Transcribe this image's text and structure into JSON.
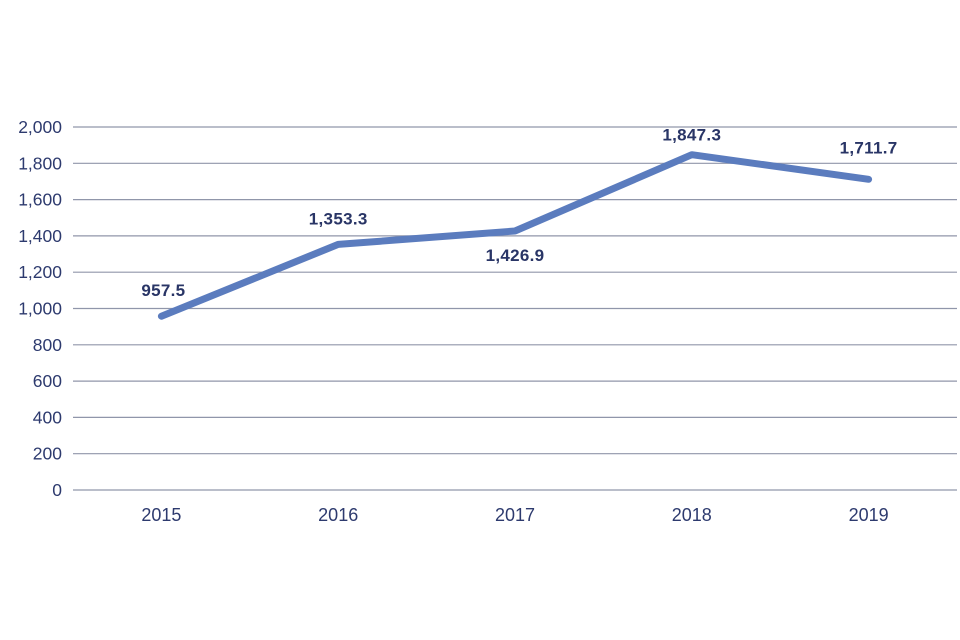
{
  "chart_data": {
    "type": "line",
    "title": "",
    "xlabel": "",
    "ylabel": "",
    "categories": [
      "2015",
      "2016",
      "2017",
      "2018",
      "2019"
    ],
    "series": [
      {
        "name": "value",
        "values": [
          957.5,
          1353.3,
          1426.9,
          1847.3,
          1711.7
        ]
      }
    ],
    "data_labels": [
      "957.5",
      "1,353.3",
      "1,426.9",
      "1,847.3",
      "1,711.7"
    ],
    "data_label_positions": [
      "above",
      "above",
      "below",
      "above",
      "above"
    ],
    "ylim": [
      0,
      2000
    ],
    "ytick_step": 200,
    "ytick_labels": [
      "0",
      "200",
      "400",
      "600",
      "800",
      "1,000",
      "1,200",
      "1,400",
      "1,600",
      "1,800",
      "2,000"
    ],
    "grid": true,
    "legend": "none",
    "colors": {
      "line": "#5b7cbe",
      "gridline": "#9096aa",
      "tick_text": "#2d3a6e",
      "data_label_text": "#293566",
      "background": "#ffffff"
    }
  }
}
